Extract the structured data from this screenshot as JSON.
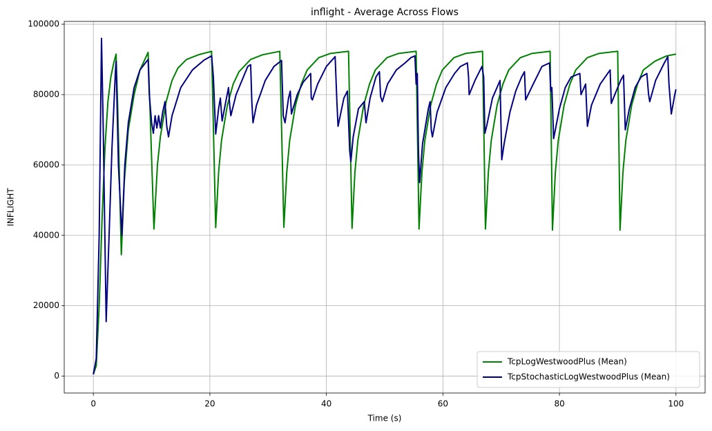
{
  "chart_data": {
    "type": "line",
    "title": "inflight - Average Across Flows",
    "xlabel": "Time (s)",
    "ylabel": "INFLIGHT",
    "xlim": [
      -5,
      105
    ],
    "xticks": [
      0,
      20,
      40,
      60,
      80,
      100
    ],
    "ylim": [
      -4800,
      100800
    ],
    "yticks": [
      0,
      20000,
      40000,
      60000,
      80000,
      100000
    ],
    "grid": true,
    "legend": "lower right",
    "series": [
      {
        "name": "TcpLogWestwoodPlus (Mean)",
        "color": "#008000",
        "x": [
          0,
          0.5,
          1,
          1.5,
          2,
          2.5,
          3,
          3.5,
          3.9,
          4.2,
          4.8,
          5.3,
          6,
          7,
          8,
          9.4,
          10.4,
          11,
          11.5,
          12.5,
          13.5,
          14.5,
          16,
          18,
          20.3,
          21,
          21.5,
          22,
          23,
          24,
          25,
          27,
          29,
          32,
          32.7,
          33.2,
          33.7,
          34.7,
          35.7,
          36.7,
          38.7,
          40.7,
          43.8,
          44.4,
          44.9,
          45.4,
          46.4,
          47.4,
          48.4,
          50.4,
          52.4,
          55.4,
          55.9,
          56.4,
          56.9,
          57.9,
          58.9,
          59.9,
          61.9,
          63.9,
          66.8,
          67.3,
          67.8,
          68.3,
          69.3,
          70.3,
          71.3,
          73.3,
          75.3,
          78.4,
          78.8,
          79.3,
          79.8,
          80.8,
          81.8,
          82.8,
          84.8,
          86.8,
          90,
          90.4,
          90.9,
          91.4,
          92.4,
          93.4,
          94.4,
          96.4,
          98.4,
          100
        ],
        "values": [
          500,
          3000,
          20000,
          45000,
          65000,
          78000,
          85000,
          89000,
          91500,
          75000,
          34500,
          55000,
          70000,
          80000,
          87000,
          92000,
          41800,
          60000,
          68000,
          78000,
          84000,
          87500,
          90000,
          91300,
          92300,
          42200,
          58000,
          67000,
          77000,
          83000,
          86500,
          90000,
          91300,
          92300,
          42300,
          58000,
          67000,
          77000,
          83000,
          87000,
          90500,
          91700,
          92300,
          42000,
          58000,
          67000,
          77000,
          83000,
          87000,
          90500,
          91700,
          92300,
          41800,
          58000,
          67000,
          77000,
          83000,
          87000,
          90500,
          91700,
          92300,
          41800,
          58000,
          67000,
          77000,
          83000,
          87000,
          90500,
          91700,
          92300,
          41500,
          58000,
          67000,
          77000,
          83000,
          87000,
          90500,
          91700,
          92300,
          41500,
          58000,
          67000,
          77000,
          83000,
          87000,
          89500,
          91000,
          91500
        ]
      },
      {
        "name": "TcpStochasticLogWestwoodPlus (Mean)",
        "color": "#000080",
        "x": [
          0,
          0.5,
          1,
          1.4,
          1.7,
          2.2,
          2.7,
          3.2,
          3.8,
          3.9,
          4.3,
          4.9,
          5.4,
          6,
          7,
          8,
          9.4,
          9.6,
          10,
          10.3,
          10.6,
          10.9,
          11.2,
          11.5,
          11.9,
          12.3,
          12.6,
          12.9,
          13.5,
          15,
          17,
          19,
          20.3,
          20.6,
          21,
          21.5,
          21.8,
          22.1,
          22.5,
          23.2,
          23.4,
          23.6,
          24.5,
          25.5,
          26.5,
          27,
          27.2,
          27.4,
          28,
          29.5,
          31,
          32.3,
          32.6,
          32.9,
          33.5,
          33.8,
          34,
          35,
          36,
          37.3,
          37.4,
          37.6,
          38.5,
          40,
          41.5,
          41.8,
          42,
          43,
          43.6,
          44,
          44.2,
          44.6,
          45.5,
          46.5,
          46.8,
          47.5,
          48.5,
          49.1,
          49.3,
          49.6,
          50.5,
          52,
          53.5,
          54.5,
          55.2,
          55.4,
          55.6,
          55.8,
          56,
          56.5,
          57.5,
          57.8,
          58,
          58.2,
          59,
          60.5,
          62,
          63,
          64.2,
          64.4,
          64.5,
          65.5,
          66.7,
          67,
          67.2,
          67.5,
          68.5,
          69.8,
          70.1,
          70.5,
          71.5,
          72.5,
          73.5,
          74,
          74.2,
          75.5,
          77,
          78.3,
          78.5,
          78.7,
          79,
          80,
          81,
          82,
          83.5,
          83.7,
          84.5,
          84.8,
          85.5,
          87,
          88.7,
          88.9,
          89.5,
          90.5,
          91,
          91.3,
          92,
          93,
          94,
          95,
          95.3,
          95.5,
          96.5,
          98,
          98.6,
          98.8,
          99.2,
          99.8,
          100
        ],
        "values": [
          500,
          5000,
          40000,
          96000,
          70000,
          15500,
          40000,
          65000,
          87000,
          89500,
          60000,
          40000,
          60000,
          72000,
          82000,
          87000,
          90000,
          80000,
          72000,
          69000,
          74000,
          70500,
          74000,
          70500,
          75000,
          78000,
          71000,
          68000,
          74000,
          82000,
          87000,
          89800,
          91000,
          85000,
          68800,
          76000,
          79000,
          72500,
          76000,
          82000,
          77000,
          74000,
          80000,
          84000,
          88000,
          88500,
          78000,
          72000,
          77000,
          84000,
          88000,
          89700,
          74000,
          72000,
          79000,
          81000,
          74500,
          80000,
          83500,
          86000,
          79000,
          78500,
          83000,
          88000,
          90800,
          78000,
          71000,
          79000,
          81000,
          64000,
          61000,
          68000,
          76000,
          78000,
          72000,
          79000,
          85000,
          86500,
          79500,
          78000,
          83000,
          87000,
          89000,
          90500,
          91000,
          83000,
          86000,
          64000,
          55000,
          66000,
          76000,
          78000,
          70000,
          68000,
          75000,
          82000,
          86000,
          88000,
          89000,
          85000,
          80000,
          84000,
          88000,
          85000,
          69000,
          71000,
          79000,
          84000,
          61500,
          66000,
          75000,
          81000,
          85000,
          86500,
          78500,
          83000,
          88000,
          89000,
          81000,
          82000,
          67500,
          76000,
          82000,
          85000,
          86000,
          80000,
          83000,
          71000,
          77000,
          83000,
          87000,
          77500,
          80000,
          84000,
          85500,
          70000,
          76000,
          82000,
          85000,
          86000,
          80000,
          78000,
          84000,
          89000,
          90800,
          83000,
          74500,
          80000,
          81500
        ]
      }
    ]
  }
}
